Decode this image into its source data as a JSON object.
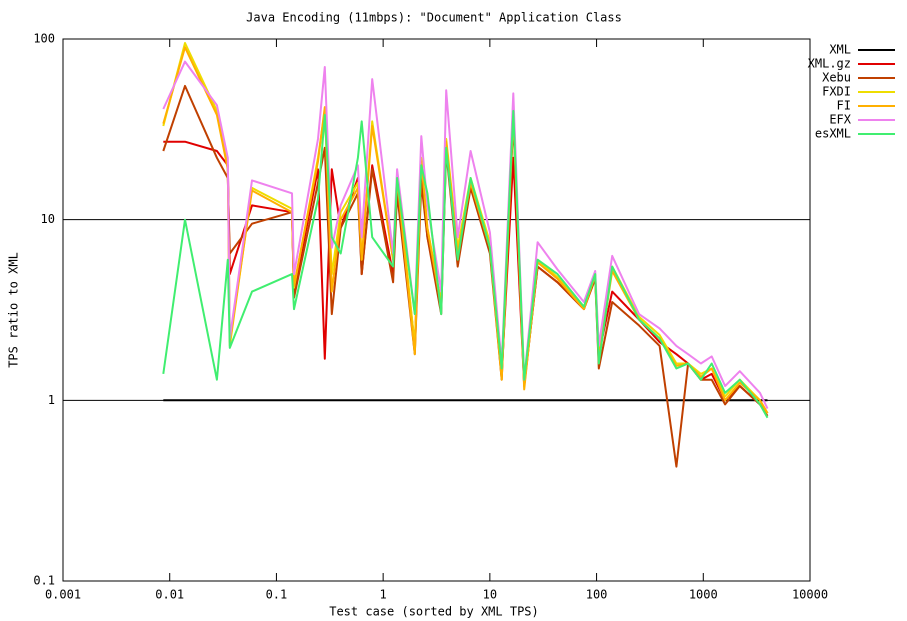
{
  "chart_data": {
    "type": "line",
    "title": "Java Encoding (11mbps): \"Document\" Application Class",
    "x_label": "Test case (sorted by XML TPS)",
    "y_label": "TPS ratio to XML",
    "xscale": "log",
    "yscale": "log",
    "grid": true,
    "legend": "outside-right",
    "xlim": [
      0.001,
      10000
    ],
    "xticks": [
      0.001,
      0.01,
      0.1,
      1,
      10,
      100,
      1000,
      10000
    ],
    "ylim": [
      0.1,
      100
    ],
    "yticks": [
      0.1,
      1,
      10,
      100
    ],
    "x": [
      0.0087,
      0.0139,
      0.0277,
      0.035,
      0.0366,
      0.059,
      0.14,
      0.146,
      0.245,
      0.284,
      0.33,
      0.4,
      0.58,
      0.63,
      0.79,
      1.24,
      1.35,
      1.98,
      2.28,
      2.6,
      3.5,
      3.9,
      5,
      6.6,
      10,
      12.9,
      16.6,
      21,
      28,
      43,
      76,
      97,
      105,
      140,
      250,
      390,
      560,
      720,
      950,
      1200,
      1600,
      2200,
      3400,
      4000
    ],
    "series": [
      {
        "name": "XML",
        "color": "#000000",
        "values": [
          1,
          1,
          1,
          1,
          1,
          1,
          1,
          1,
          1,
          1,
          1,
          1,
          1,
          1,
          1,
          1,
          1,
          1,
          1,
          1,
          1,
          1,
          1,
          1,
          1,
          1,
          1,
          1,
          1,
          1,
          1,
          1,
          1,
          1,
          1,
          1,
          1,
          1,
          1,
          1,
          1,
          1,
          1,
          1
        ]
      },
      {
        "name": "XML.gz",
        "color": "#e00000",
        "values": [
          27,
          27,
          24,
          20,
          5,
          12,
          11,
          4,
          19,
          1.7,
          19,
          9,
          17,
          5,
          20,
          5,
          16,
          2,
          19,
          8,
          3.5,
          25,
          6,
          16,
          7,
          1.4,
          22,
          1.2,
          5.5,
          4.5,
          3.2,
          4.8,
          1.8,
          4,
          2.8,
          2.1,
          1.8,
          1.6,
          1.3,
          1.4,
          1.0,
          1.2,
          0.95,
          0.85
        ]
      },
      {
        "name": "Xebu",
        "color": "#c04000",
        "values": [
          24,
          55,
          22,
          17,
          6.5,
          9.5,
          11,
          3.7,
          16,
          25,
          3,
          9,
          14,
          5,
          19,
          4.5,
          14,
          1.8,
          16,
          8,
          3,
          24,
          5.5,
          15,
          6.5,
          1.3,
          35,
          1.2,
          5.5,
          4.5,
          3.2,
          4.7,
          1.5,
          3.5,
          2.6,
          2.0,
          0.43,
          1.6,
          1.3,
          1.3,
          0.95,
          1.2,
          0.95,
          0.82
        ]
      },
      {
        "name": "FXDI",
        "color": "#eedd00",
        "values": [
          33,
          95,
          40,
          20,
          2,
          15,
          11.5,
          4.2,
          22,
          40,
          5,
          11,
          16,
          6,
          35,
          6,
          18,
          2,
          22,
          9,
          3.5,
          28,
          7,
          17,
          7.5,
          1.4,
          40,
          1.2,
          6,
          4.8,
          3.3,
          5,
          1.8,
          5.5,
          2.9,
          2.3,
          1.6,
          1.6,
          1.4,
          1.5,
          1.05,
          1.3,
          1.0,
          0.85
        ]
      },
      {
        "name": "FI",
        "color": "#ffb000",
        "values": [
          34,
          90,
          38,
          19,
          2.1,
          14.5,
          11,
          4.3,
          21,
          42,
          4,
          10,
          15,
          6,
          33,
          6,
          17,
          1.8,
          21,
          9,
          3.3,
          27,
          6.5,
          16,
          7,
          1.3,
          38,
          1.15,
          5.8,
          4.7,
          3.2,
          4.9,
          1.7,
          5.2,
          2.8,
          2.2,
          1.55,
          1.6,
          1.35,
          1.5,
          1.0,
          1.25,
          1.0,
          0.85
        ]
      },
      {
        "name": "EFX",
        "color": "#ee82ee",
        "values": [
          41,
          75,
          43,
          22,
          2.2,
          16.5,
          14,
          5,
          28,
          70,
          7,
          12,
          20,
          8,
          60,
          6.5,
          19,
          3,
          29,
          12,
          4,
          52,
          8,
          24,
          8.5,
          1.6,
          50,
          1.3,
          7.5,
          5.3,
          3.5,
          5.2,
          2.0,
          6.3,
          3.0,
          2.5,
          2.0,
          1.8,
          1.6,
          1.75,
          1.2,
          1.45,
          1.1,
          0.9
        ]
      },
      {
        "name": "esXML",
        "color": "#40ee70",
        "values": [
          1.4,
          10,
          1.3,
          6,
          1.95,
          4,
          5,
          3.2,
          13,
          38,
          8,
          6.5,
          22,
          35,
          8,
          5.5,
          17,
          3,
          20,
          14,
          3,
          25,
          6,
          17,
          7,
          1.5,
          40,
          1.3,
          6,
          5,
          3.3,
          5,
          1.6,
          5.5,
          2.8,
          2.2,
          1.5,
          1.6,
          1.3,
          1.6,
          1.1,
          1.3,
          0.95,
          0.8
        ]
      }
    ]
  }
}
